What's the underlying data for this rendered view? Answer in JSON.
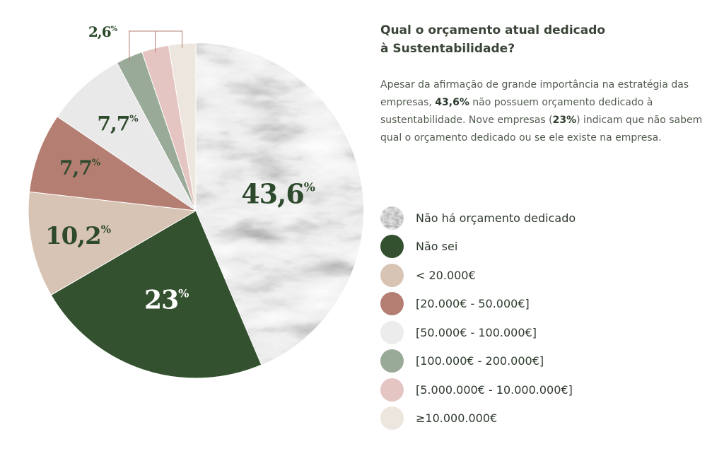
{
  "chart_data": {
    "type": "pie",
    "title": "Qual o orçamento atual dedicado à Sustentabilidade?",
    "slices": [
      {
        "label": "Não há orçamento dedicado",
        "value": 43.6,
        "display": "43,6",
        "color": "#c9c9c9"
      },
      {
        "label": "Não sei",
        "value": 23,
        "display": "23",
        "color": "#33512f"
      },
      {
        "label": "< 20.000€",
        "value": 10.2,
        "display": "10,2",
        "color": "#d8c4b4"
      },
      {
        "label": "[20.000€ - 50.000€]",
        "value": 7.7,
        "display": "7,7",
        "color": "#b57e72"
      },
      {
        "label": "[50.000€ - 100.000€]",
        "value": 7.7,
        "display": "7,7",
        "color": "#e9e9e9"
      },
      {
        "label": "[100.000€ - 200.000€]",
        "value": 2.6,
        "display": "",
        "color": "#9aaa98"
      },
      {
        "label": "[5.000.000€ - 10.000.000€]",
        "value": 2.6,
        "display": "",
        "color": "#e4c5c1"
      },
      {
        "label": "≥10.000.000€",
        "value": 2.6,
        "display": "",
        "color": "#ede6de"
      }
    ],
    "callout_label": "2,6",
    "percent_sign": "%",
    "label_colors": {
      "on_light": "#2d4a2c",
      "on_dark": "#ffffff"
    }
  },
  "heading": {
    "title_line1": "Qual o orçamento atual dedicado",
    "title_line2": "à Sustentabilidade?"
  },
  "description": {
    "part1": "Apesar da afirmação de grande importância na estratégia das empresas, ",
    "bold1": "43,6%",
    "part2": " não possuem orçamento dedicado à sustentabilidade. Nove empresas (",
    "bold2": "23%",
    "part3": ") indicam que não sabem qual o orçamento dedicado ou se ele existe na empresa."
  },
  "legend": [
    {
      "label": "Não há orçamento dedicado",
      "color": "#7d7d7d",
      "textured": true
    },
    {
      "label": "Não sei",
      "color": "#33512f"
    },
    {
      "label": "< 20.000€",
      "color": "#d8c4b4"
    },
    {
      "label": "[20.000€ - 50.000€]",
      "color": "#b57e72"
    },
    {
      "label": "[50.000€ - 100.000€]",
      "color": "#ececec"
    },
    {
      "label": "[100.000€ - 200.000€]",
      "color": "#9aaa98"
    },
    {
      "label": "[5.000.000€ - 10.000.000€]",
      "color": "#e4c5c1"
    },
    {
      "label": "≥10.000.000€",
      "color": "#ede6de"
    }
  ],
  "colors": {
    "callout_line": "#b57e72",
    "text_dark": "#2f3b2f"
  }
}
